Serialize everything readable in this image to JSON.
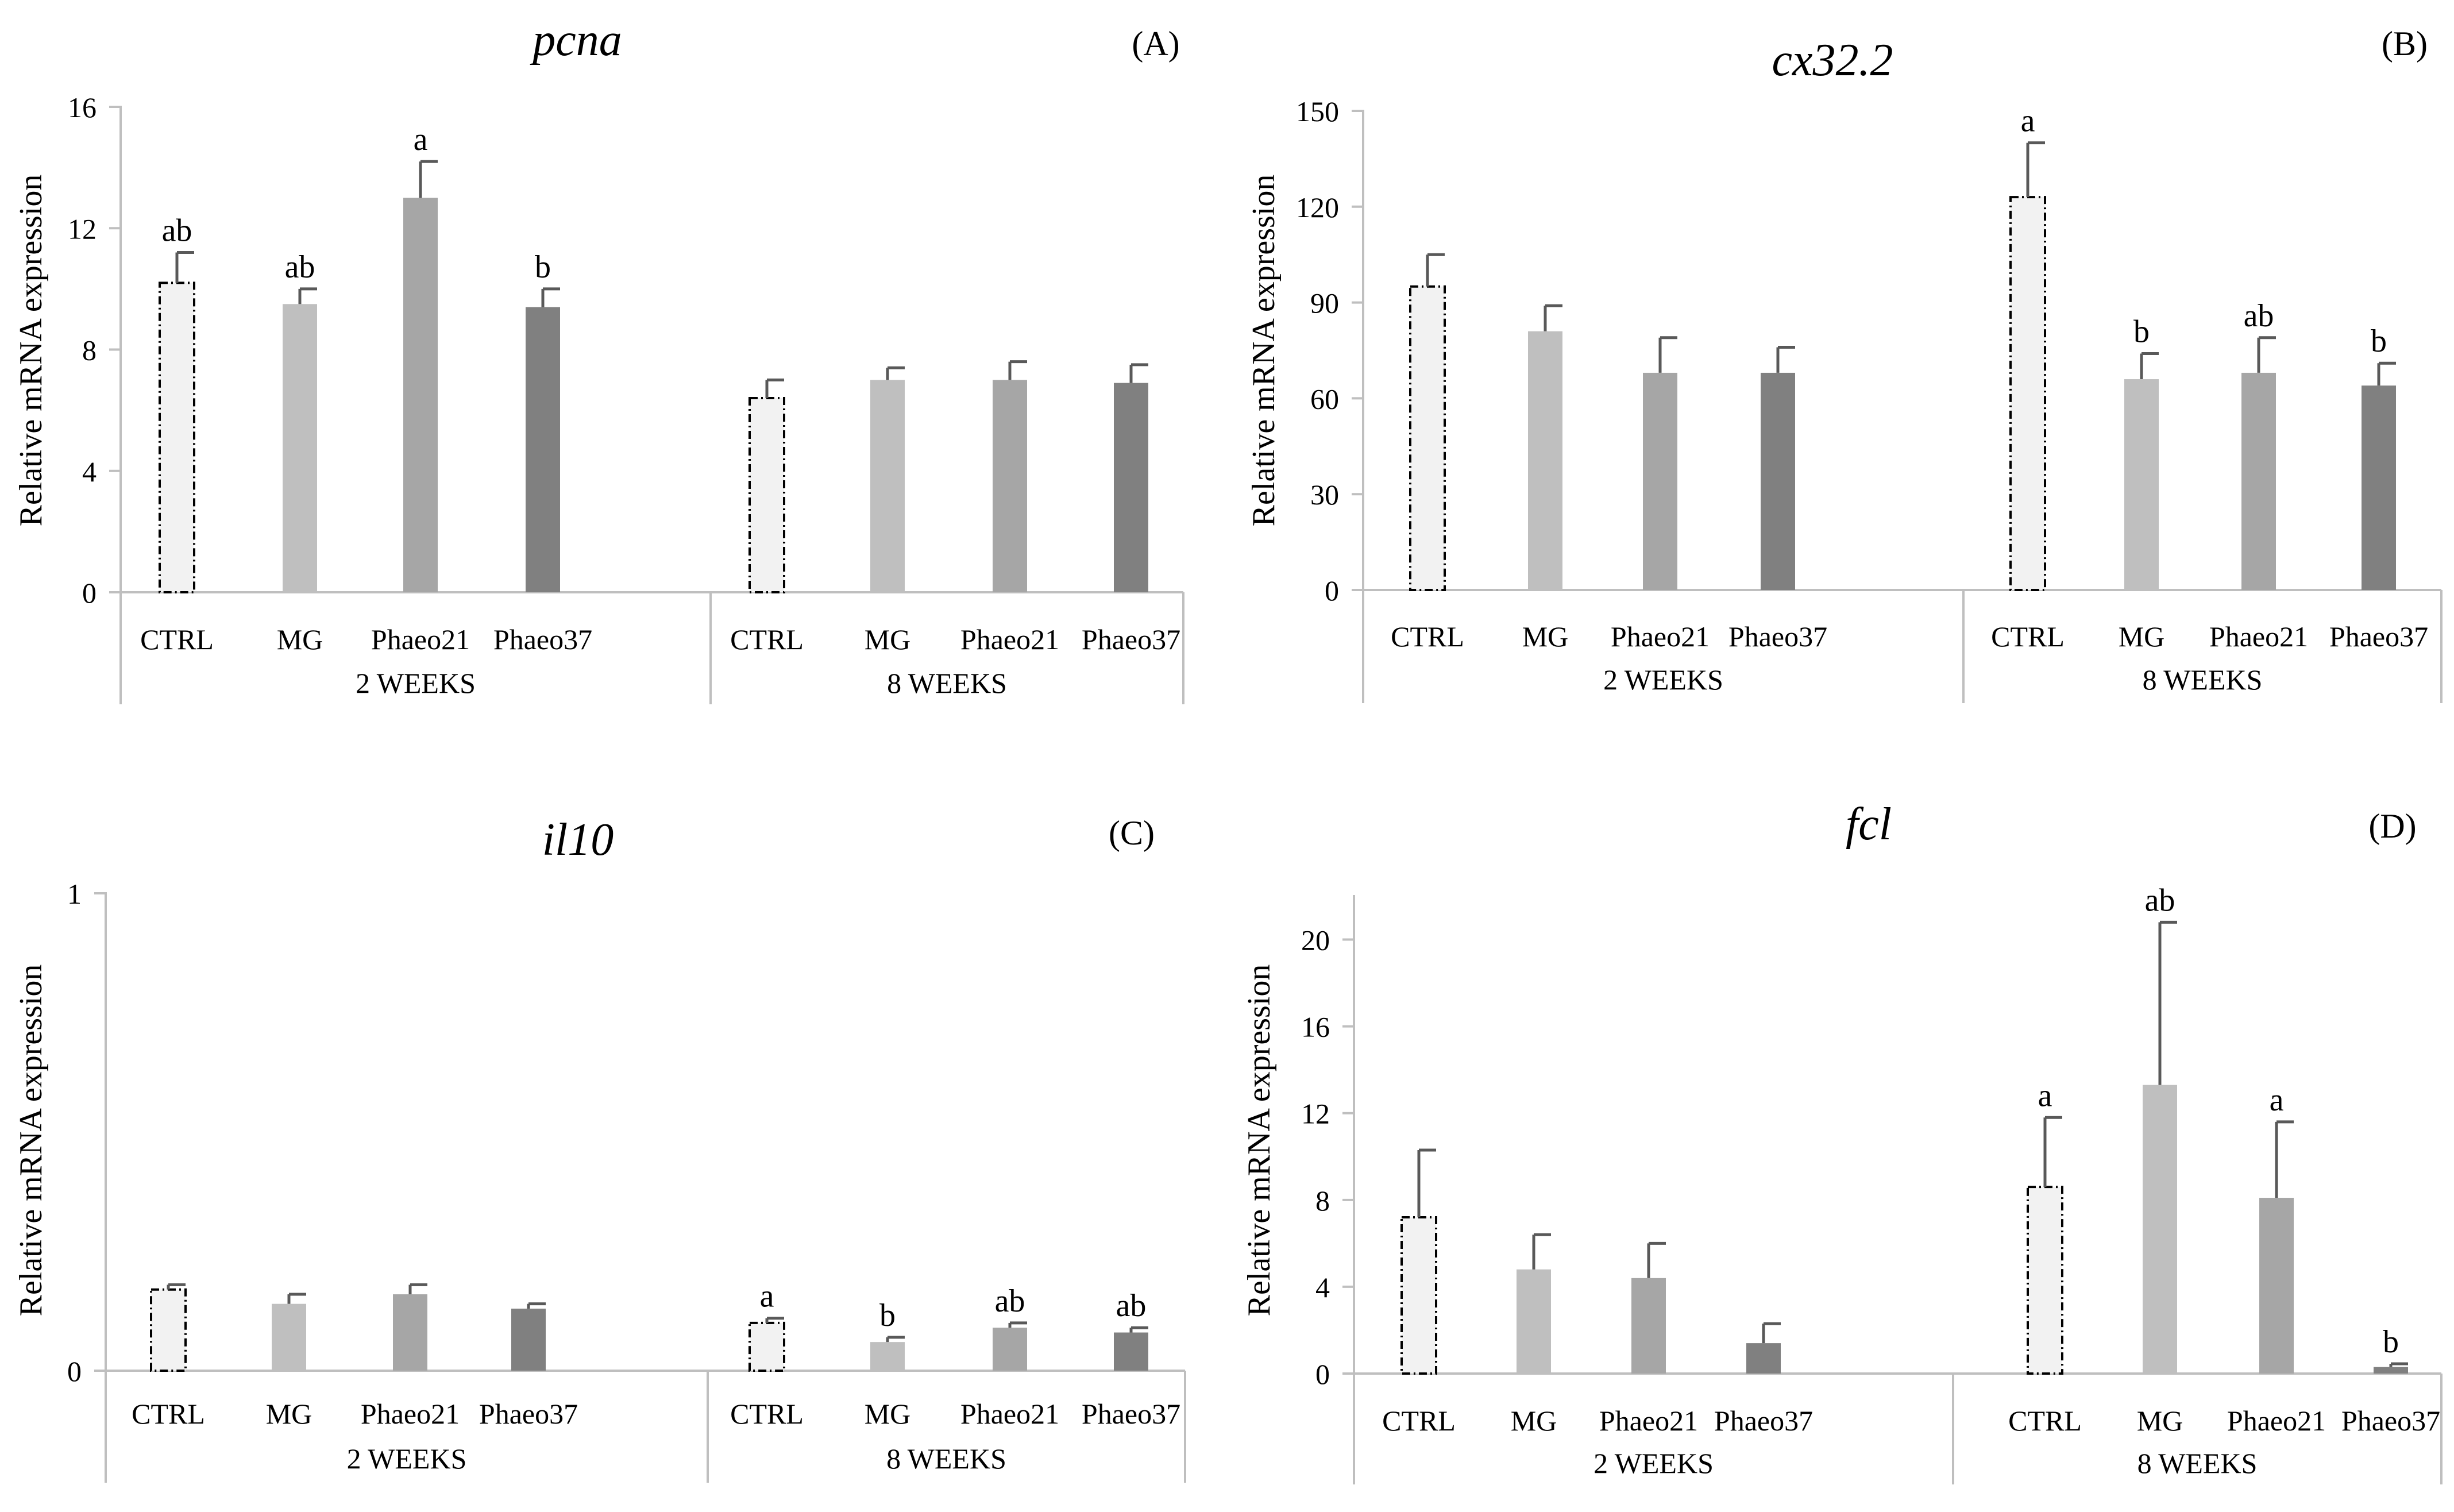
{
  "chart_data": [
    {
      "type": "bar",
      "panel": "(A)",
      "title": "pcna",
      "ylabel": "Relative mRNA expression",
      "ylim": [
        0,
        16
      ],
      "yticks": [
        0,
        4,
        8,
        12,
        16
      ],
      "ytick_labels": [
        "0",
        "4",
        "8",
        "12",
        "16"
      ],
      "groups": [
        {
          "label": "2 WEEKS",
          "categories": [
            "CTRL",
            "MG",
            "Phaeo21",
            "Phaeo37"
          ],
          "values": [
            10.2,
            9.5,
            13.0,
            9.4
          ],
          "errors": [
            1.0,
            0.5,
            1.2,
            0.6
          ],
          "letters": [
            "ab",
            "ab",
            "a",
            "b"
          ]
        },
        {
          "label": "8 WEEKS",
          "categories": [
            "CTRL",
            "MG",
            "Phaeo21",
            "Phaeo37"
          ],
          "values": [
            6.4,
            7.0,
            7.0,
            6.9
          ],
          "errors": [
            0.6,
            0.4,
            0.6,
            0.6
          ],
          "letters": [
            "",
            "",
            "",
            ""
          ]
        }
      ]
    },
    {
      "type": "bar",
      "panel": "(B)",
      "title": "cx32.2",
      "ylabel": "Relative mRNA expression",
      "ylim": [
        0,
        150
      ],
      "yticks": [
        0,
        30,
        60,
        90,
        120,
        150
      ],
      "ytick_labels": [
        "0",
        "30",
        "60",
        "90",
        "120",
        "150"
      ],
      "groups": [
        {
          "label": "2 WEEKS",
          "categories": [
            "CTRL",
            "MG",
            "Phaeo21",
            "Phaeo37"
          ],
          "values": [
            95,
            81,
            68,
            68
          ],
          "errors": [
            10,
            8,
            11,
            8
          ],
          "letters": [
            "",
            "",
            "",
            ""
          ]
        },
        {
          "label": "8 WEEKS",
          "categories": [
            "CTRL",
            "MG",
            "Phaeo21",
            "Phaeo37"
          ],
          "values": [
            123,
            66,
            68,
            64
          ],
          "errors": [
            17,
            8,
            11,
            7
          ],
          "letters": [
            "a",
            "b",
            "ab",
            "b"
          ]
        }
      ]
    },
    {
      "type": "bar",
      "panel": "(C)",
      "title": "il10",
      "ylabel": "Relative mRNA expression",
      "ylim": [
        0,
        1
      ],
      "yticks": [
        0,
        1
      ],
      "ytick_labels": [
        "0",
        "1"
      ],
      "groups": [
        {
          "label": "2 WEEKS",
          "categories": [
            "CTRL",
            "MG",
            "Phaeo21",
            "Phaeo37"
          ],
          "values": [
            0.17,
            0.14,
            0.16,
            0.13
          ],
          "errors": [
            0.01,
            0.02,
            0.02,
            0.01
          ],
          "letters": [
            "",
            "",
            "",
            ""
          ]
        },
        {
          "label": "8 WEEKS",
          "categories": [
            "CTRL",
            "MG",
            "Phaeo21",
            "Phaeo37"
          ],
          "values": [
            0.1,
            0.06,
            0.09,
            0.08
          ],
          "errors": [
            0.01,
            0.01,
            0.01,
            0.01
          ],
          "letters": [
            "a",
            "b",
            "ab",
            "ab"
          ]
        }
      ]
    },
    {
      "type": "bar",
      "panel": "(D)",
      "title": "fcl",
      "ylabel": "Relative mRNA expression",
      "ylim": [
        0,
        22
      ],
      "yticks": [
        0,
        4,
        8,
        12,
        16,
        20
      ],
      "ytick_labels": [
        "0",
        "4",
        "8",
        "12",
        "16",
        "20"
      ],
      "groups": [
        {
          "label": "2 WEEKS",
          "categories": [
            "CTRL",
            "MG",
            "Phaeo21",
            "Phaeo37"
          ],
          "values": [
            7.2,
            4.8,
            4.4,
            1.4
          ],
          "errors": [
            3.1,
            1.6,
            1.6,
            0.9
          ],
          "letters": [
            "",
            "",
            "",
            ""
          ]
        },
        {
          "label": "8 WEEKS",
          "categories": [
            "CTRL",
            "MG",
            "Phaeo21",
            "Phaeo37"
          ],
          "values": [
            8.6,
            13.3,
            8.1,
            0.3
          ],
          "errors": [
            3.2,
            7.5,
            3.5,
            0.15
          ],
          "letters": [
            "a",
            "ab",
            "a",
            "b"
          ]
        }
      ]
    }
  ],
  "colors": {
    "ctrl_fill": "#f2f2f2",
    "ctrl_stroke": "#000000",
    "mg": "#bfbfbf",
    "phaeo21": "#a6a6a6",
    "phaeo37": "#808080",
    "error_bar": "#595959",
    "axis": "#bfbfbf"
  }
}
